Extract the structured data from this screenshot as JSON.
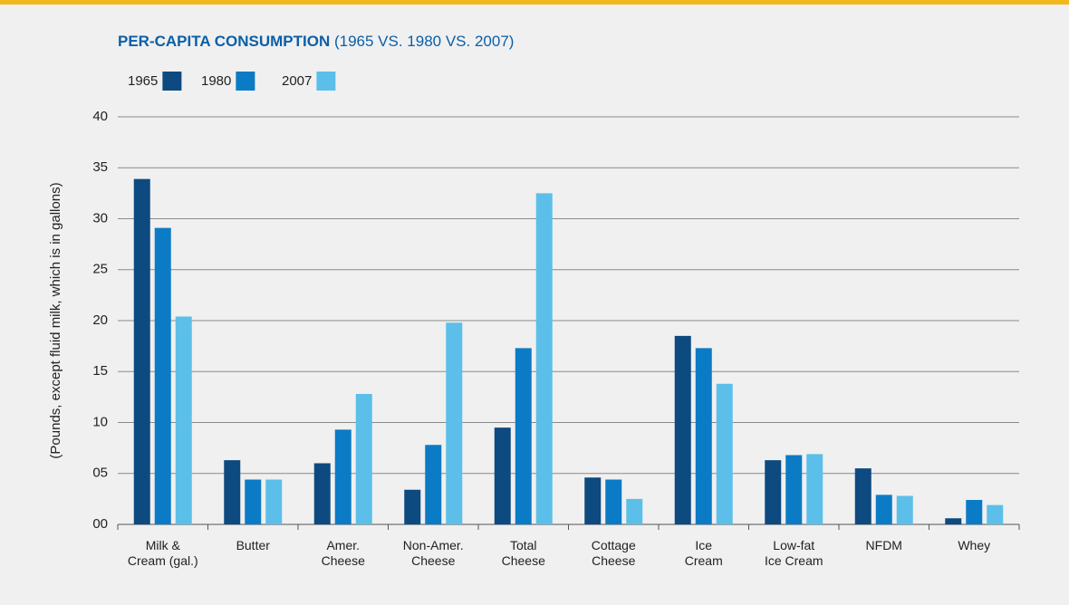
{
  "chart_data": {
    "type": "bar",
    "title": "PER-CAPITA CONSUMPTION",
    "subtitle": "(1965 VS. 1980 VS. 2007)",
    "y_label": "(Pounds, except fluid milk, which is in gallons)",
    "categories": [
      "Milk &\nCream (gal.)",
      "Butter",
      "Amer.\nCheese",
      "Non-Amer.\nCheese",
      "Total\nCheese",
      "Cottage\nCheese",
      "Ice\nCream",
      "Low-fat\nIce Cream",
      "NFDM",
      "Whey"
    ],
    "series": [
      {
        "name": "1965",
        "color": "#0d4a80",
        "values": [
          33.9,
          6.3,
          6.0,
          3.4,
          9.5,
          4.6,
          18.5,
          6.3,
          5.5,
          0.6
        ]
      },
      {
        "name": "1980",
        "color": "#0b7bc6",
        "values": [
          29.1,
          4.4,
          9.3,
          7.8,
          17.3,
          4.4,
          17.3,
          6.8,
          2.9,
          2.4
        ]
      },
      {
        "name": "2007",
        "color": "#5bbfe9",
        "values": [
          20.4,
          4.4,
          12.8,
          19.8,
          32.5,
          2.5,
          13.8,
          6.9,
          2.8,
          1.9
        ]
      }
    ],
    "ylim": [
      0,
      40
    ],
    "yticks": [
      {
        "value": 0,
        "label": "00"
      },
      {
        "value": 5,
        "label": "05"
      },
      10,
      15,
      20,
      25,
      30,
      35,
      40
    ],
    "grid": true
  }
}
